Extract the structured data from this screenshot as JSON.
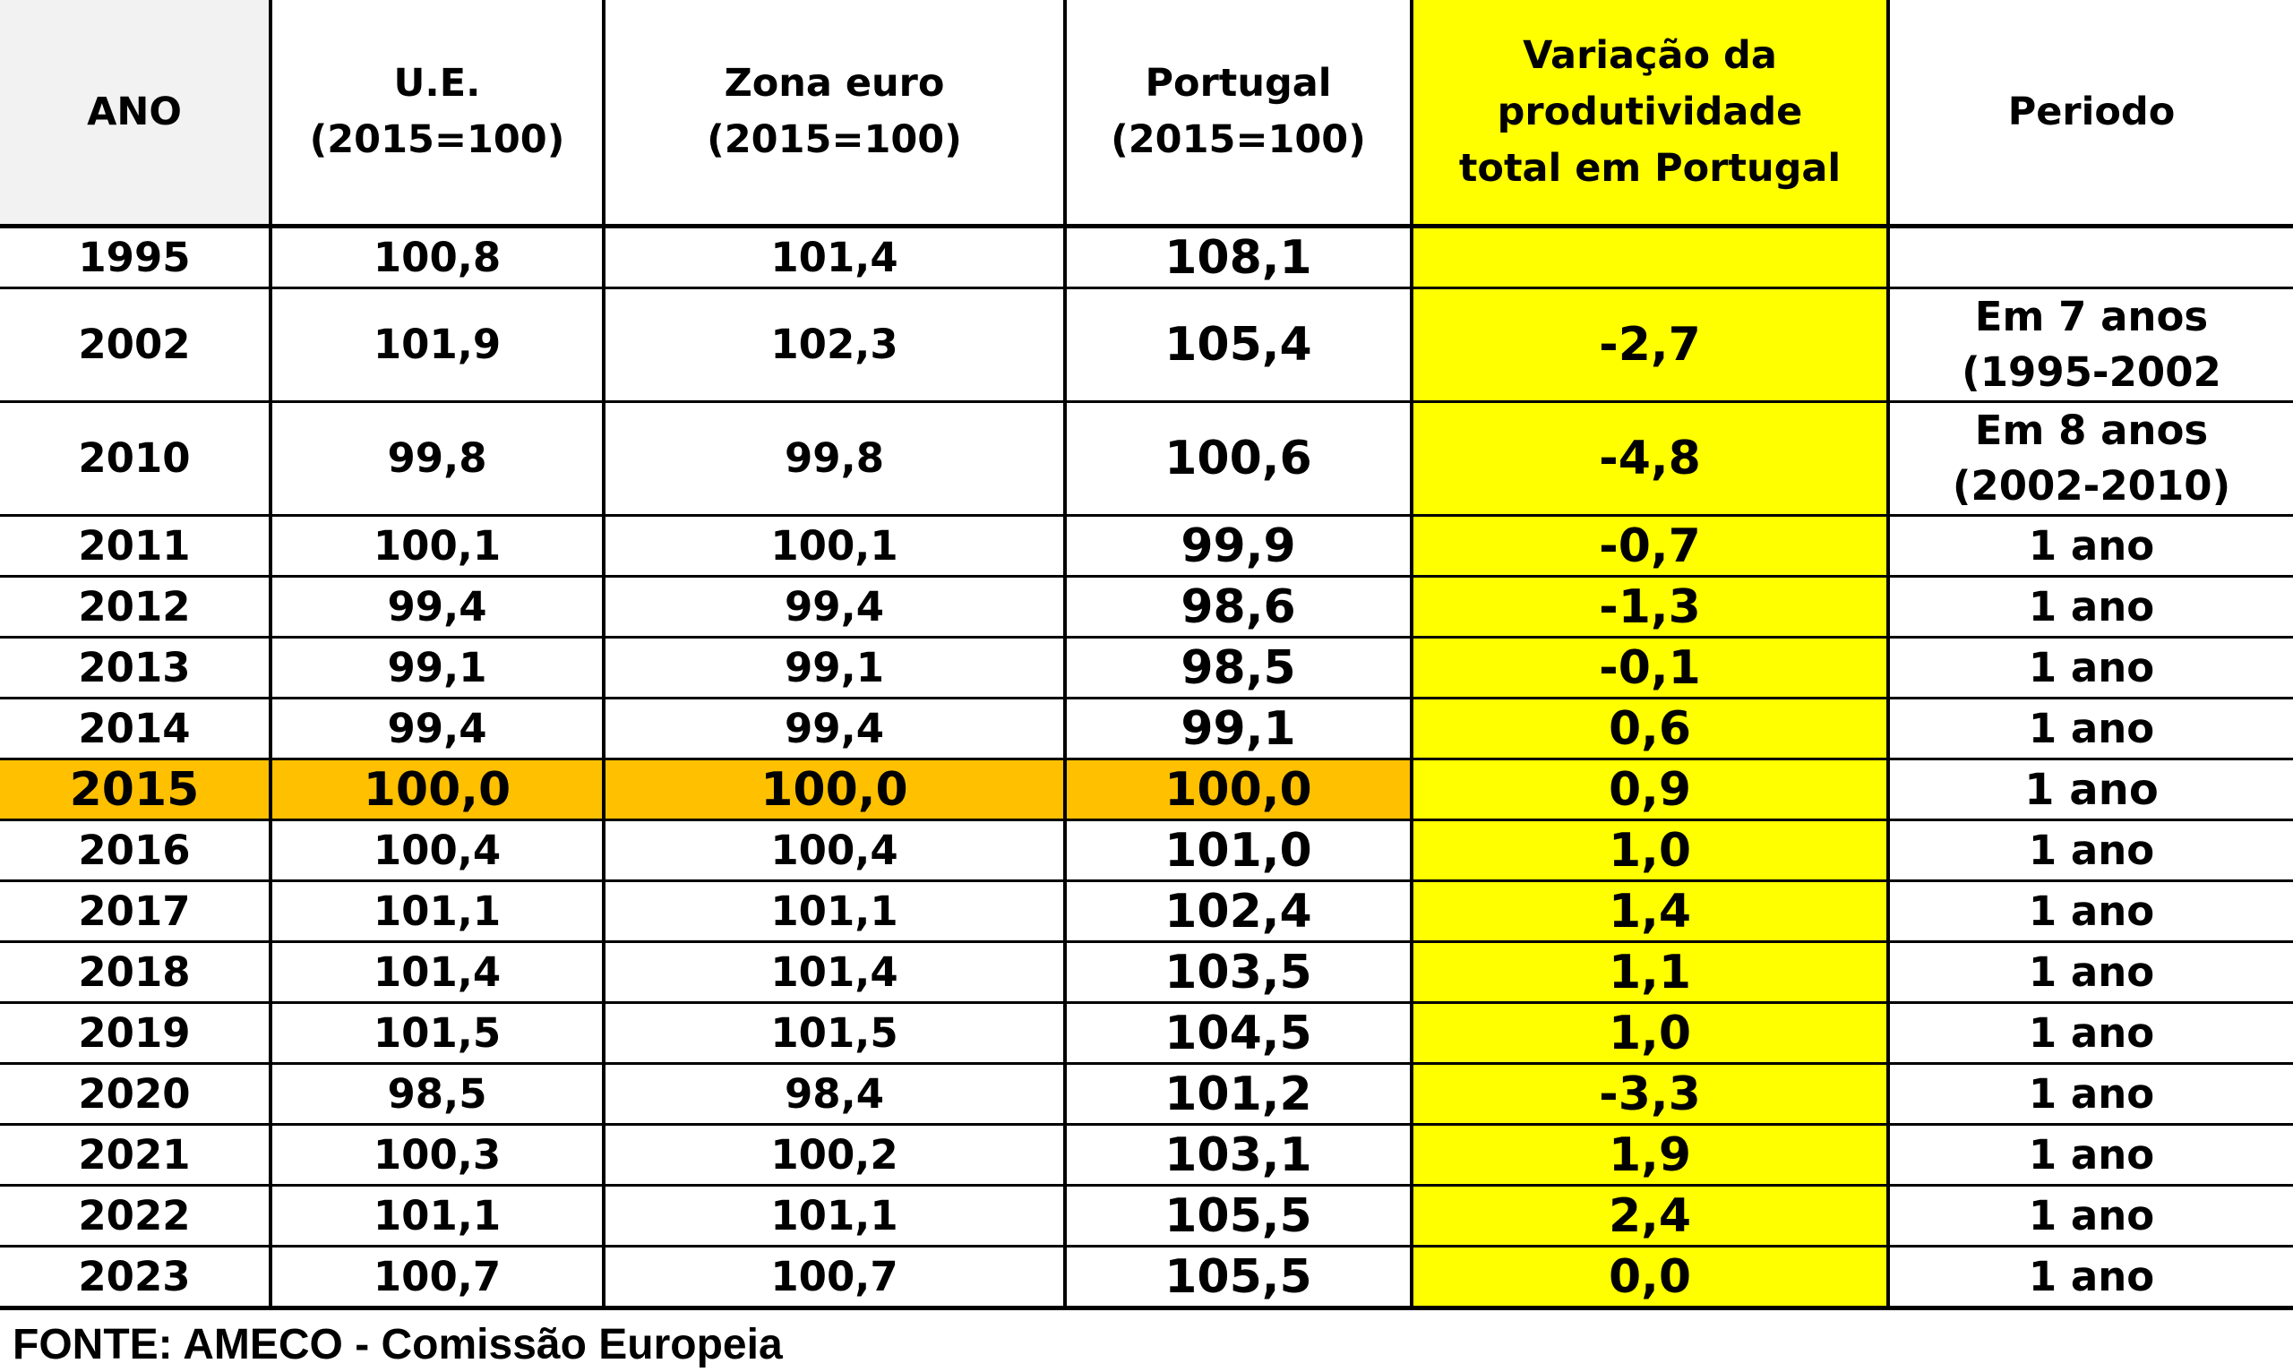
{
  "table": {
    "headers": {
      "ano": [
        "ANO"
      ],
      "ue": [
        "U.E.",
        "(2015=100)"
      ],
      "zona_euro": [
        "Zona euro",
        "(2015=100)"
      ],
      "portugal": [
        "Portugal",
        "(2015=100)"
      ],
      "variacao": [
        "Variação da",
        "produtividade",
        "total em Portugal"
      ],
      "periodo": [
        "Periodo"
      ]
    },
    "highlight_colors": {
      "header_ano": "#f2f2f2",
      "variacao_column": "#ffff00",
      "row_2015": "#ffc000"
    },
    "rows": [
      {
        "ano": "1995",
        "ue": "100,8",
        "zona_euro": "101,4",
        "portugal": "108,1",
        "variacao": "",
        "periodo": []
      },
      {
        "ano": "2002",
        "ue": "101,9",
        "zona_euro": "102,3",
        "portugal": "105,4",
        "variacao": "-2,7",
        "periodo": [
          "Em 7 anos",
          "(1995-2002"
        ]
      },
      {
        "ano": "2010",
        "ue": "99,8",
        "zona_euro": "99,8",
        "portugal": "100,6",
        "variacao": "-4,8",
        "periodo": [
          "Em 8 anos",
          "(2002-2010)"
        ]
      },
      {
        "ano": "2011",
        "ue": "100,1",
        "zona_euro": "100,1",
        "portugal": "99,9",
        "variacao": "-0,7",
        "periodo": [
          "1 ano"
        ]
      },
      {
        "ano": "2012",
        "ue": "99,4",
        "zona_euro": "99,4",
        "portugal": "98,6",
        "variacao": "-1,3",
        "periodo": [
          "1 ano"
        ]
      },
      {
        "ano": "2013",
        "ue": "99,1",
        "zona_euro": "99,1",
        "portugal": "98,5",
        "variacao": "-0,1",
        "periodo": [
          "1 ano"
        ]
      },
      {
        "ano": "2014",
        "ue": "99,4",
        "zona_euro": "99,4",
        "portugal": "99,1",
        "variacao": "0,6",
        "periodo": [
          "1 ano"
        ]
      },
      {
        "ano": "2015",
        "ue": "100,0",
        "zona_euro": "100,0",
        "portugal": "100,0",
        "variacao": "0,9",
        "periodo": [
          "1 ano"
        ],
        "highlight": true
      },
      {
        "ano": "2016",
        "ue": "100,4",
        "zona_euro": "100,4",
        "portugal": "101,0",
        "variacao": "1,0",
        "periodo": [
          "1 ano"
        ]
      },
      {
        "ano": "2017",
        "ue": "101,1",
        "zona_euro": "101,1",
        "portugal": "102,4",
        "variacao": "1,4",
        "periodo": [
          "1 ano"
        ]
      },
      {
        "ano": "2018",
        "ue": "101,4",
        "zona_euro": "101,4",
        "portugal": "103,5",
        "variacao": "1,1",
        "periodo": [
          "1 ano"
        ]
      },
      {
        "ano": "2019",
        "ue": "101,5",
        "zona_euro": "101,5",
        "portugal": "104,5",
        "variacao": "1,0",
        "periodo": [
          "1 ano"
        ]
      },
      {
        "ano": "2020",
        "ue": "98,5",
        "zona_euro": "98,4",
        "portugal": "101,2",
        "variacao": "-3,3",
        "periodo": [
          "1 ano"
        ]
      },
      {
        "ano": "2021",
        "ue": "100,3",
        "zona_euro": "100,2",
        "portugal": "103,1",
        "variacao": "1,9",
        "periodo": [
          "1 ano"
        ]
      },
      {
        "ano": "2022",
        "ue": "101,1",
        "zona_euro": "101,1",
        "portugal": "105,5",
        "variacao": "2,4",
        "periodo": [
          "1 ano"
        ]
      },
      {
        "ano": "2023",
        "ue": "100,7",
        "zona_euro": "100,7",
        "portugal": "105,5",
        "variacao": "0,0",
        "periodo": [
          "1 ano"
        ]
      }
    ]
  },
  "source_note": "FONTE: AMECO - Comissão Europeia"
}
